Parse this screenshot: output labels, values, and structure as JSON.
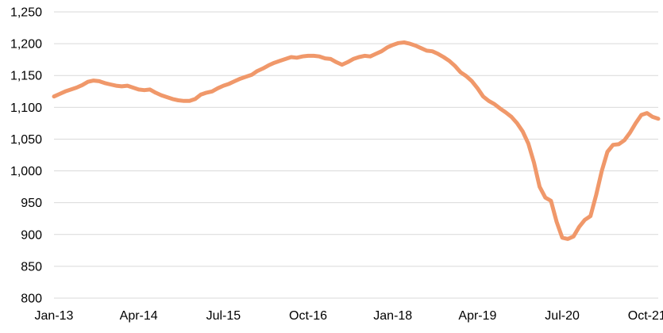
{
  "chart_data": {
    "type": "line",
    "title": "",
    "xlabel": "",
    "ylabel": "",
    "legend": null,
    "grid": "horizontal-only",
    "ylim": [
      800,
      1250
    ],
    "y_tick_values": [
      800,
      850,
      900,
      950,
      1000,
      1050,
      1100,
      1150,
      1200,
      1250
    ],
    "y_tick_labels": [
      "800",
      "850",
      "900",
      "950",
      "1,000",
      "1,050",
      "1,100",
      "1,150",
      "1,200",
      "1,250"
    ],
    "x_tick_labels": [
      "Jan-13",
      "Apr-14",
      "Jul-15",
      "Oct-16",
      "Jan-18",
      "Apr-19",
      "Jul-20",
      "Oct-21"
    ],
    "x_tick_month_indices": [
      0,
      15,
      30,
      45,
      60,
      75,
      90,
      105
    ],
    "line_color": "#F0986A",
    "gridline_color": "#D9D9D9",
    "months": [
      "Jan-13",
      "Feb-13",
      "Mar-13",
      "Apr-13",
      "May-13",
      "Jun-13",
      "Jul-13",
      "Aug-13",
      "Sep-13",
      "Oct-13",
      "Nov-13",
      "Dec-13",
      "Jan-14",
      "Feb-14",
      "Mar-14",
      "Apr-14",
      "May-14",
      "Jun-14",
      "Jul-14",
      "Aug-14",
      "Sep-14",
      "Oct-14",
      "Nov-14",
      "Dec-14",
      "Jan-15",
      "Feb-15",
      "Mar-15",
      "Apr-15",
      "May-15",
      "Jun-15",
      "Jul-15",
      "Aug-15",
      "Sep-15",
      "Oct-15",
      "Nov-15",
      "Dec-15",
      "Jan-16",
      "Feb-16",
      "Mar-16",
      "Apr-16",
      "May-16",
      "Jun-16",
      "Jul-16",
      "Aug-16",
      "Sep-16",
      "Oct-16",
      "Nov-16",
      "Dec-16",
      "Jan-17",
      "Feb-17",
      "Mar-17",
      "Apr-17",
      "May-17",
      "Jun-17",
      "Jul-17",
      "Aug-17",
      "Sep-17",
      "Oct-17",
      "Nov-17",
      "Dec-17",
      "Jan-18",
      "Feb-18",
      "Mar-18",
      "Apr-18",
      "May-18",
      "Jun-18",
      "Jul-18",
      "Aug-18",
      "Sep-18",
      "Oct-18",
      "Nov-18",
      "Dec-18",
      "Jan-19",
      "Feb-19",
      "Mar-19",
      "Apr-19",
      "May-19",
      "Jun-19",
      "Jul-19",
      "Aug-19",
      "Sep-19",
      "Oct-19",
      "Nov-19",
      "Dec-19",
      "Jan-20",
      "Feb-20",
      "Mar-20",
      "Apr-20",
      "May-20",
      "Jun-20",
      "Jul-20",
      "Aug-20",
      "Sep-20",
      "Oct-20",
      "Nov-20",
      "Dec-20",
      "Jan-21",
      "Feb-21",
      "Mar-21",
      "Apr-21",
      "May-21",
      "Jun-21",
      "Jul-21",
      "Aug-21",
      "Sep-21",
      "Oct-21",
      "Nov-21",
      "Dec-21"
    ],
    "values": [
      1117,
      1121,
      1125,
      1128,
      1131,
      1135,
      1140,
      1142,
      1141,
      1138,
      1136,
      1134,
      1133,
      1134,
      1131,
      1128,
      1127,
      1128,
      1123,
      1119,
      1116,
      1113,
      1111,
      1110,
      1110,
      1113,
      1120,
      1123,
      1125,
      1130,
      1134,
      1137,
      1141,
      1145,
      1148,
      1151,
      1157,
      1161,
      1166,
      1170,
      1173,
      1176,
      1179,
      1178,
      1180,
      1181,
      1181,
      1180,
      1177,
      1176,
      1171,
      1167,
      1171,
      1176,
      1179,
      1181,
      1180,
      1184,
      1188,
      1194,
      1198,
      1201,
      1202,
      1200,
      1197,
      1193,
      1189,
      1188,
      1184,
      1179,
      1173,
      1165,
      1155,
      1149,
      1141,
      1130,
      1117,
      1110,
      1105,
      1098,
      1092,
      1085,
      1075,
      1062,
      1043,
      1013,
      975,
      958,
      953,
      920,
      895,
      893,
      897,
      912,
      923,
      929,
      962,
      1000,
      1030,
      1041,
      1042,
      1048,
      1060,
      1075,
      1088,
      1091,
      1085,
      1082
    ]
  }
}
